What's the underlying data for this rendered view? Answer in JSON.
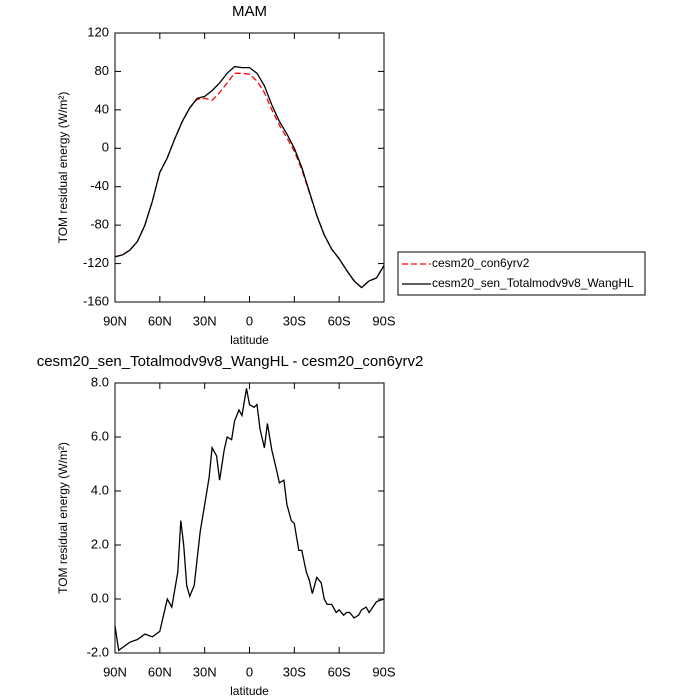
{
  "chart_data": [
    {
      "type": "line",
      "title": "MAM",
      "xlabel": "latitude",
      "ylabel": "TOM residual energy (W/m²)",
      "x": [
        90,
        85,
        80,
        75,
        70,
        65,
        60,
        55,
        50,
        45,
        40,
        35,
        30,
        25,
        20,
        15,
        10,
        5,
        0,
        -5,
        -10,
        -15,
        -20,
        -25,
        -30,
        -35,
        -40,
        -45,
        -50,
        -55,
        -60,
        -65,
        -70,
        -75,
        -80,
        -85,
        -90
      ],
      "series": [
        {
          "name": "cesm20_con6yrv2",
          "color": "#ff0000",
          "style": "dashed",
          "values": [
            -113,
            -111,
            -106,
            -97,
            -80,
            -55,
            -25,
            -10,
            10,
            28,
            42,
            51,
            52,
            50,
            58,
            68,
            78,
            78,
            77,
            70,
            58,
            40,
            24,
            11,
            -3,
            -22,
            -46,
            -70,
            -90,
            -105,
            -115,
            -127,
            -138,
            -145,
            -138,
            -135,
            -122
          ]
        },
        {
          "name": "cesm20_sen_Totalmodv9v8_WangHL",
          "color": "#000000",
          "style": "solid",
          "values": [
            -113,
            -111,
            -106,
            -97,
            -80,
            -55,
            -25,
            -10,
            10,
            28,
            42,
            52,
            54,
            60,
            68,
            78,
            85,
            84,
            84,
            78,
            65,
            45,
            28,
            15,
            0,
            -20,
            -45,
            -70,
            -90,
            -105,
            -115,
            -127,
            -138,
            -145,
            -138,
            -135,
            -122
          ]
        }
      ],
      "xlim": [
        90,
        -90
      ],
      "xticks": [
        {
          "value": 90,
          "label": "90N"
        },
        {
          "value": 60,
          "label": "60N"
        },
        {
          "value": 30,
          "label": "30N"
        },
        0,
        {
          "value": -30,
          "label": "30S"
        },
        {
          "value": -60,
          "label": "60S"
        },
        {
          "value": -90,
          "label": "90S"
        }
      ],
      "ylim": [
        -160,
        120
      ],
      "yticks": [
        -160,
        -120,
        -80,
        -40,
        0,
        40,
        80,
        120
      ],
      "legend": "right"
    },
    {
      "type": "line",
      "title": "cesm20_sen_Totalmodv9v8_WangHL - cesm20_con6yrv2",
      "xlabel": "latitude",
      "ylabel": "TOM residual energy (W/m²)",
      "x": [
        90,
        87.5,
        85,
        80,
        75,
        70,
        65,
        60,
        55,
        52,
        48,
        46,
        44,
        42,
        40,
        37,
        35,
        33,
        30,
        27,
        25,
        22,
        20,
        17,
        15,
        12,
        10,
        7,
        5,
        2,
        0,
        -3,
        -5,
        -7,
        -10,
        -12,
        -15,
        -18,
        -20,
        -23,
        -25,
        -28,
        -30,
        -33,
        -35,
        -38,
        -40,
        -42,
        -45,
        -48,
        -50,
        -52,
        -55,
        -58,
        -60,
        -63,
        -65,
        -67,
        -70,
        -73,
        -75,
        -78,
        -80,
        -85,
        -90
      ],
      "series": [
        {
          "name": "cesm20_sen_Totalmodv9v8_WangHL - cesm20_con6yrv2",
          "color": "#000000",
          "style": "solid",
          "values": [
            -1.0,
            -1.9,
            -1.8,
            -1.6,
            -1.5,
            -1.3,
            -1.4,
            -1.2,
            0.0,
            -0.3,
            1.0,
            2.9,
            2.0,
            0.5,
            0.1,
            0.5,
            1.5,
            2.5,
            3.5,
            4.5,
            5.6,
            5.3,
            4.4,
            5.5,
            6.0,
            5.9,
            6.6,
            7.0,
            6.8,
            7.8,
            7.2,
            7.1,
            7.2,
            6.3,
            5.6,
            6.5,
            5.5,
            4.8,
            4.3,
            4.4,
            3.5,
            2.9,
            2.8,
            1.8,
            1.8,
            1.0,
            0.7,
            0.2,
            0.8,
            0.6,
            0.0,
            -0.2,
            -0.2,
            -0.5,
            -0.4,
            -0.6,
            -0.5,
            -0.5,
            -0.7,
            -0.6,
            -0.4,
            -0.3,
            -0.5,
            -0.1,
            0.0
          ]
        }
      ],
      "xlim": [
        90,
        -90
      ],
      "xticks": [
        {
          "value": 90,
          "label": "90N"
        },
        {
          "value": 60,
          "label": "60N"
        },
        {
          "value": 30,
          "label": "30N"
        },
        0,
        {
          "value": -30,
          "label": "30S"
        },
        {
          "value": -60,
          "label": "60S"
        },
        {
          "value": -90,
          "label": "90S"
        }
      ],
      "ylim": [
        -2,
        8
      ],
      "yticks": [
        {
          "value": -2,
          "label": "-2.0"
        },
        {
          "value": 0,
          "label": "0.0"
        },
        {
          "value": 2,
          "label": "2.0"
        },
        {
          "value": 4,
          "label": "4.0"
        },
        {
          "value": 6,
          "label": "6.0"
        },
        {
          "value": 8,
          "label": "8.0"
        }
      ]
    }
  ]
}
